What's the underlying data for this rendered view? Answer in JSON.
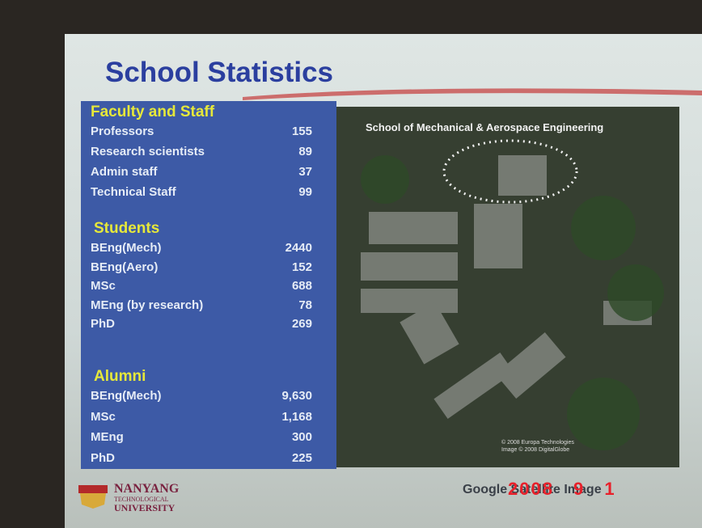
{
  "title": "School Statistics",
  "sections": [
    {
      "heading": "Faculty and Staff",
      "rows": [
        [
          "Professors",
          "155"
        ],
        [
          "Research scientists",
          "89"
        ],
        [
          "Admin staff",
          "37"
        ],
        [
          "Technical Staff",
          "99"
        ]
      ]
    },
    {
      "heading": "Students",
      "rows": [
        [
          "BEng(Mech)",
          "2440"
        ],
        [
          "BEng(Aero)",
          "152"
        ],
        [
          "MSc",
          "688"
        ],
        [
          "MEng (by research)",
          "78"
        ],
        [
          "PhD",
          "269"
        ]
      ]
    },
    {
      "heading": "Alumni",
      "rows": [
        [
          "BEng(Mech)",
          "9,630"
        ],
        [
          "MSc",
          "1,168"
        ],
        [
          "MEng",
          "300"
        ],
        [
          "PhD",
          "225"
        ]
      ]
    }
  ],
  "image": {
    "caption": "School of Mechanical & Aerospace Engineering",
    "credits": [
      "© 2008 Europa Technologies",
      "Image © 2008 DigitalGlobe"
    ]
  },
  "footer": {
    "logo": [
      "NANYANG",
      "TECHNOLOGICAL",
      "UNIVERSITY"
    ],
    "source": "Google Satellite Image",
    "date_stamp": "2008 9 1"
  }
}
